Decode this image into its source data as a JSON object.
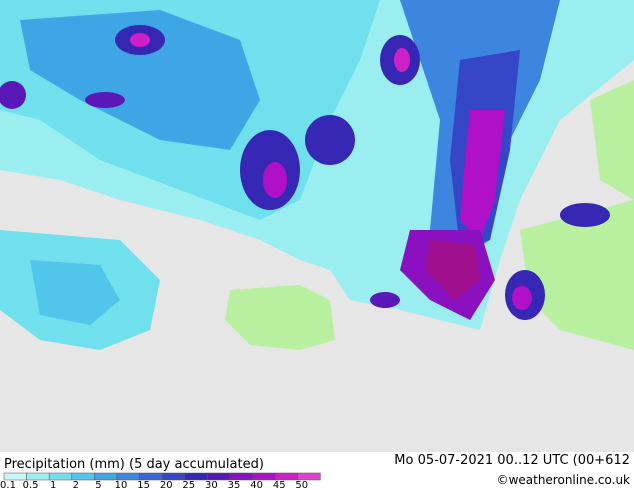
{
  "footer": {
    "title": "Precipitation (mm) (5 day accumulated)",
    "valid_time": "Mo 05-07-2021 00..12 UTC (00+612",
    "credit": "©weatheronline.co.uk"
  },
  "legend": {
    "labels": [
      "0.1",
      "0.5",
      "1",
      "2",
      "5",
      "10",
      "15",
      "20",
      "25",
      "30",
      "35",
      "40",
      "45",
      "50"
    ],
    "colors": [
      "#c8f5f5",
      "#9beef0",
      "#6fe0ec",
      "#4fc6ea",
      "#3fa6e6",
      "#3c86e0",
      "#3a66d8",
      "#3646c8",
      "#3628b4",
      "#5a18b8",
      "#8a10c0",
      "#b010c8",
      "#d020c8",
      "#e040d0"
    ]
  }
}
